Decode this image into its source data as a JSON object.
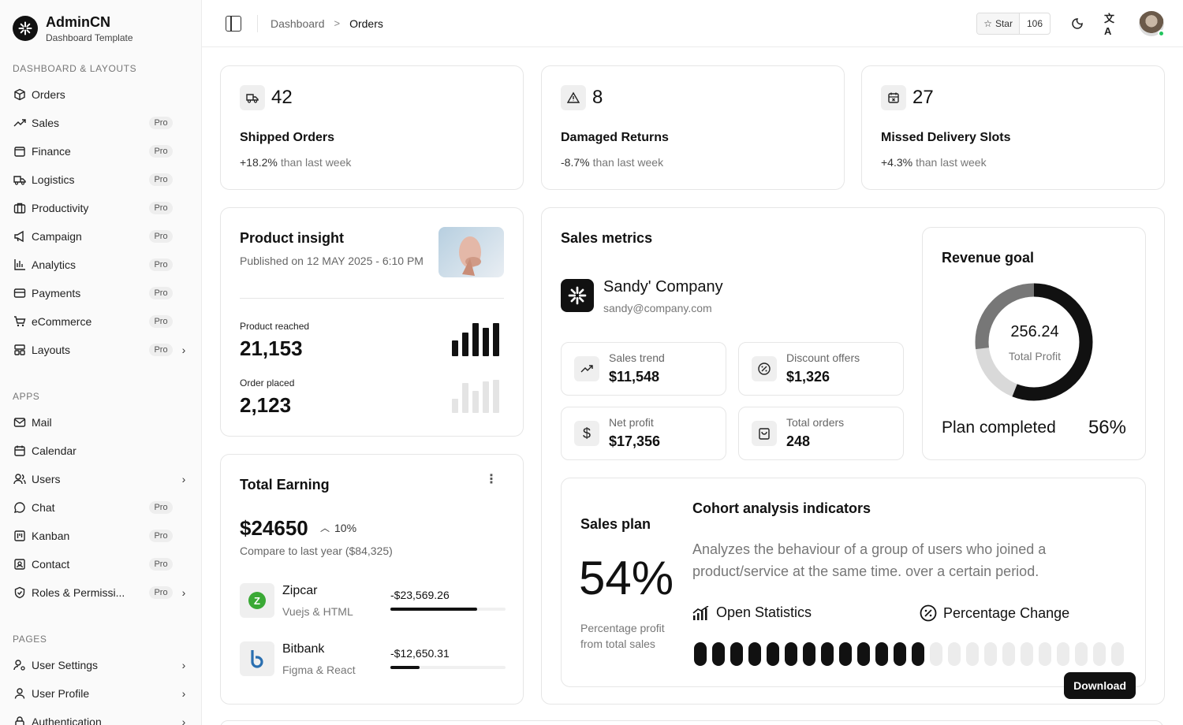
{
  "brand": {
    "name": "AdminCN",
    "subtitle": "Dashboard Template"
  },
  "sidebar": {
    "sections": [
      {
        "title": "DASHBOARD & LAYOUTS",
        "items": [
          {
            "label": "Orders",
            "icon": "box-icon",
            "pro": "",
            "chevron": false
          },
          {
            "label": "Sales",
            "icon": "trending-up-icon",
            "pro": "Pro",
            "chevron": false
          },
          {
            "label": "Finance",
            "icon": "wallet-icon",
            "pro": "Pro",
            "chevron": false
          },
          {
            "label": "Logistics",
            "icon": "truck-icon",
            "pro": "Pro",
            "chevron": false
          },
          {
            "label": "Productivity",
            "icon": "briefcase-icon",
            "pro": "Pro",
            "chevron": false
          },
          {
            "label": "Campaign",
            "icon": "megaphone-icon",
            "pro": "Pro",
            "chevron": false
          },
          {
            "label": "Analytics",
            "icon": "bar-chart-icon",
            "pro": "Pro",
            "chevron": false
          },
          {
            "label": "Payments",
            "icon": "credit-card-icon",
            "pro": "Pro",
            "chevron": false
          },
          {
            "label": "eCommerce",
            "icon": "cart-icon",
            "pro": "Pro",
            "chevron": false
          },
          {
            "label": "Layouts",
            "icon": "layout-icon",
            "pro": "Pro",
            "chevron": true
          }
        ]
      },
      {
        "title": "APPS",
        "items": [
          {
            "label": "Mail",
            "icon": "mail-icon",
            "pro": "",
            "chevron": false
          },
          {
            "label": "Calendar",
            "icon": "calendar-icon",
            "pro": "",
            "chevron": false
          },
          {
            "label": "Users",
            "icon": "users-icon",
            "pro": "",
            "chevron": true
          },
          {
            "label": "Chat",
            "icon": "chat-icon",
            "pro": "Pro",
            "chevron": false
          },
          {
            "label": "Kanban",
            "icon": "kanban-icon",
            "pro": "Pro",
            "chevron": false
          },
          {
            "label": "Contact",
            "icon": "contact-icon",
            "pro": "Pro",
            "chevron": false
          },
          {
            "label": "Roles & Permissi...",
            "icon": "shield-check-icon",
            "pro": "Pro",
            "chevron": true
          }
        ]
      },
      {
        "title": "PAGES",
        "items": [
          {
            "label": "User Settings",
            "icon": "user-cog-icon",
            "pro": "",
            "chevron": true
          },
          {
            "label": "User Profile",
            "icon": "user-icon",
            "pro": "",
            "chevron": true
          },
          {
            "label": "Authentication",
            "icon": "lock-icon",
            "pro": "",
            "chevron": true
          }
        ]
      }
    ]
  },
  "topbar": {
    "breadcrumb_root": "Dashboard",
    "breadcrumb_sep": ">",
    "breadcrumb_current": "Orders",
    "star_label": "Star",
    "star_count": "106"
  },
  "stats": [
    {
      "value": "42",
      "title": "Shipped Orders",
      "delta": "+18.2%",
      "delta_text": "than last week",
      "icon": "truck-icon"
    },
    {
      "value": "8",
      "title": "Damaged Returns",
      "delta": "-8.7%",
      "delta_text": "than last week",
      "icon": "alert-triangle-icon"
    },
    {
      "value": "27",
      "title": "Missed Delivery Slots",
      "delta": "+4.3%",
      "delta_text": "than last week",
      "icon": "calendar-x-icon"
    }
  ],
  "insight": {
    "title": "Product insight",
    "published": "Published on 12 MAY 2025 - 6:10 PM",
    "reached_label": "Product reached",
    "reached_value": "21,153",
    "order_label": "Order placed",
    "order_value": "2,123"
  },
  "earning": {
    "title": "Total Earning",
    "amount": "$24650",
    "change": "10%",
    "compare": "Compare to last year ($84,325)",
    "rows": [
      {
        "name": "Zipcar",
        "sub": "Vuejs & HTML",
        "amount": "-$23,569.26",
        "progress": 0.75
      },
      {
        "name": "Bitbank",
        "sub": "Figma & React",
        "amount": "-$12,650.31",
        "progress": 0.25
      }
    ]
  },
  "sales_metrics": {
    "title": "Sales metrics",
    "company": "Sandy' Company",
    "email": "sandy@company.com",
    "boxes": [
      {
        "label": "Sales trend",
        "value": "$11,548",
        "icon": "trending-up-icon"
      },
      {
        "label": "Discount offers",
        "value": "$1,326",
        "icon": "badge-percent-icon"
      },
      {
        "label": "Net profit",
        "value": "$17,356",
        "icon": "dollar-icon"
      },
      {
        "label": "Total orders",
        "value": "248",
        "icon": "shopping-bag-icon"
      }
    ]
  },
  "revenue": {
    "title": "Revenue goal",
    "value": "256.24",
    "sub": "Total Profit",
    "plan_label": "Plan completed",
    "plan_value": "56%"
  },
  "plan": {
    "title": "Sales plan",
    "percent": "54%",
    "desc": "Percentage profit from total sales",
    "cohort_title": "Cohort analysis indicators",
    "cohort_desc": "Analyzes the behaviour of a group of users who joined a product/service at the same time. over a certain period.",
    "open_stats": "Open Statistics",
    "pct_change": "Percentage Change",
    "pills_filled": 13,
    "pills_total": 24,
    "download": "Download"
  }
}
